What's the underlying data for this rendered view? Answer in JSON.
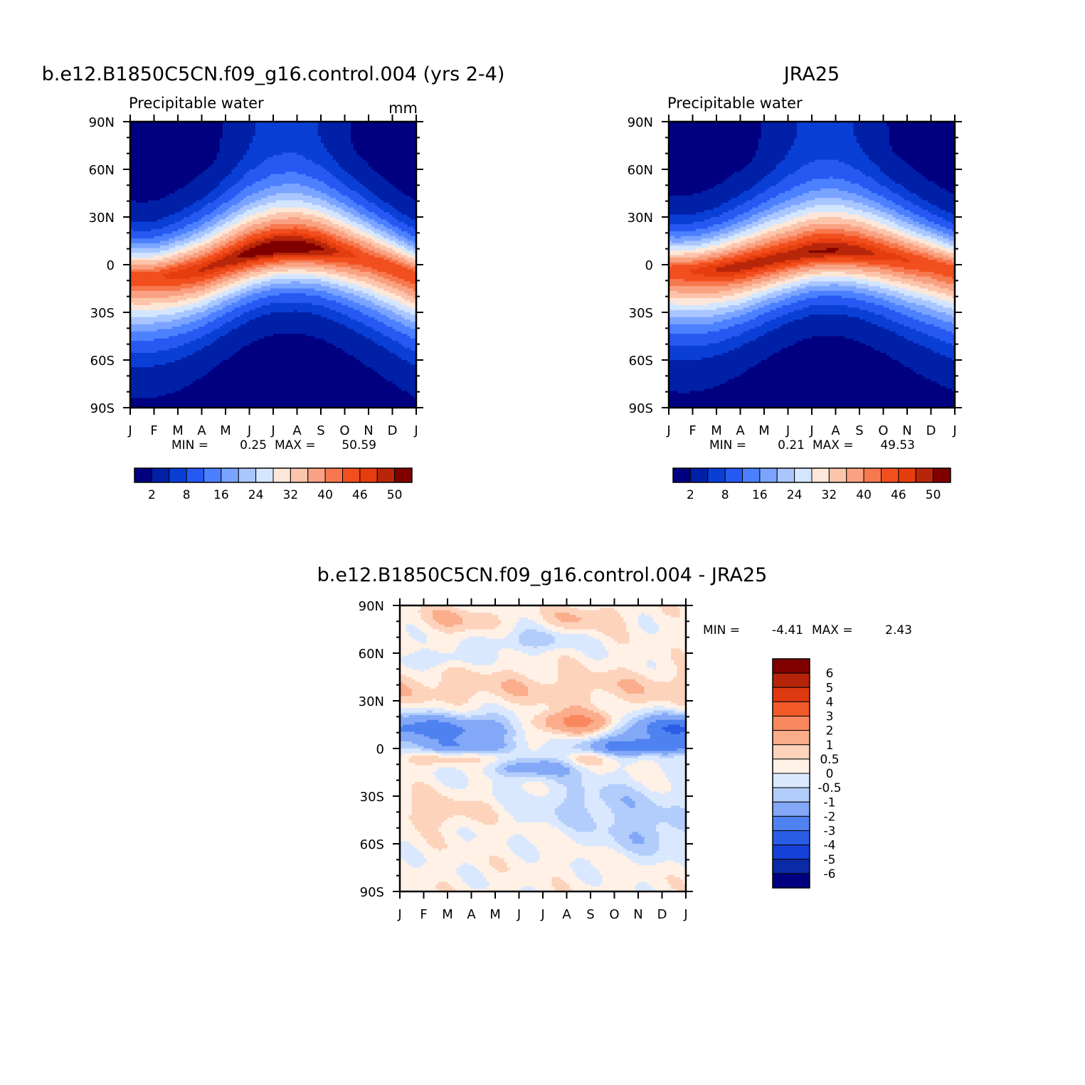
{
  "colors": {
    "precip_scale": [
      "#000080",
      "#0020a8",
      "#0a3fd6",
      "#2659f2",
      "#4c80ff",
      "#7aa4ff",
      "#a9c6ff",
      "#d4e6ff",
      "#fde7d8",
      "#fcc5ab",
      "#f9a283",
      "#f7784e",
      "#f24f1e",
      "#e63d0e",
      "#b8260a",
      "#800000"
    ],
    "diff_scale": [
      "#000080",
      "#0b2aa6",
      "#1541d8",
      "#2a5de6",
      "#4f82f0",
      "#82a8f7",
      "#b2cdfb",
      "#d9e8fe",
      "#fff1e6",
      "#fdd3bc",
      "#fbad8c",
      "#f9885f",
      "#f35a2a",
      "#dd3a11",
      "#b52409",
      "#800000"
    ]
  },
  "chart_data": [
    {
      "id": "model",
      "type": "heatmap",
      "title": "b.e12.B1850C5CN.f09_g16.control.004 (yrs 2-4)",
      "subtitle_left": "Precipitable water",
      "subtitle_right": "mm",
      "x_tick_labels": [
        "J",
        "F",
        "M",
        "A",
        "M",
        "J",
        "J",
        "A",
        "S",
        "O",
        "N",
        "D",
        "J"
      ],
      "y_tick_labels": [
        "90N",
        "60N",
        "30N",
        "0",
        "30S",
        "60S",
        "90S"
      ],
      "min_label": "MIN =",
      "min_value": "0.25",
      "max_label": "MAX =",
      "max_value": "50.59",
      "colorbar_labels": [
        "2",
        "8",
        "16",
        "24",
        "32",
        "40",
        "46",
        "50"
      ],
      "equator_peak": [
        44,
        44,
        46,
        47,
        48,
        50,
        51,
        51,
        49,
        46,
        44,
        44,
        44
      ],
      "peak_lat": [
        -8,
        -8,
        -6,
        -3,
        2,
        7,
        10,
        11,
        10,
        7,
        3,
        -2,
        -8
      ]
    },
    {
      "id": "obs",
      "type": "heatmap",
      "title": "JRA25",
      "subtitle_left": "Precipitable water",
      "x_tick_labels": [
        "J",
        "F",
        "M",
        "A",
        "M",
        "J",
        "J",
        "A",
        "S",
        "O",
        "N",
        "D",
        "J"
      ],
      "y_tick_labels": [
        "90N",
        "60N",
        "30N",
        "0",
        "30S",
        "60S",
        "90S"
      ],
      "min_label": "MIN =",
      "min_value": "0.21",
      "max_label": "MAX =",
      "max_value": "49.53",
      "colorbar_labels": [
        "2",
        "8",
        "16",
        "24",
        "32",
        "40",
        "46",
        "50"
      ],
      "equator_peak": [
        44,
        45,
        47,
        48,
        48,
        48,
        49,
        49,
        48,
        46,
        45,
        44,
        44
      ],
      "peak_lat": [
        -4,
        -4,
        -3,
        -1,
        2,
        5,
        8,
        9,
        8,
        6,
        3,
        0,
        -4
      ]
    },
    {
      "id": "diff",
      "type": "heatmap",
      "title": "b.e12.B1850C5CN.f09_g16.control.004 - JRA25",
      "x_tick_labels": [
        "J",
        "F",
        "M",
        "A",
        "M",
        "J",
        "J",
        "A",
        "S",
        "O",
        "N",
        "D",
        "J"
      ],
      "y_tick_labels": [
        "90N",
        "60N",
        "30N",
        "0",
        "30S",
        "60S",
        "90S"
      ],
      "min_label": "MIN =",
      "min_value": "-4.41",
      "max_label": "MAX =",
      "max_value": "2.43",
      "colorbar_labels": [
        "6",
        "5",
        "4",
        "3",
        "2",
        "1",
        "0.5",
        "0",
        "-0.5",
        "-1",
        "-2",
        "-3",
        "-4",
        "-5",
        "-6"
      ],
      "colorbar_levels": [
        6,
        5,
        4,
        3,
        2,
        1,
        0.5,
        0,
        -0.5,
        -1,
        -2,
        -3,
        -4,
        -5,
        -6
      ]
    }
  ]
}
